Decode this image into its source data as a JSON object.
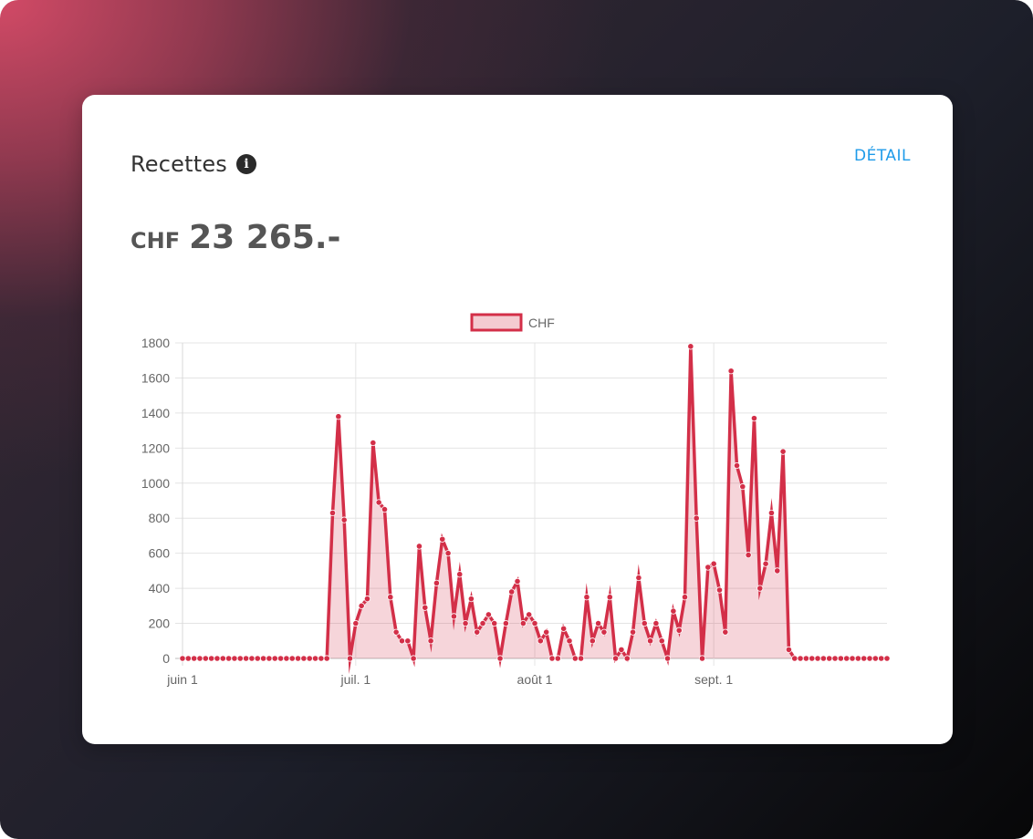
{
  "card": {
    "title": "Recettes",
    "info_icon": "info-icon",
    "detail_label": "DÉTAIL",
    "total_currency": "CHF",
    "total_amount": "23 265.-"
  },
  "colors": {
    "line": "#d32f48",
    "fill": "rgba(211,47,72,0.2)",
    "link": "#1e9be9"
  },
  "chart_data": {
    "type": "line",
    "legend": "CHF",
    "legend_position": "top",
    "grid": true,
    "x_tick_labels": [
      "juin 1",
      "juil. 1",
      "août 1",
      "sept. 1"
    ],
    "x_tick_days": [
      0,
      30,
      61,
      92
    ],
    "ylim": [
      0,
      1800
    ],
    "y_ticks": [
      0,
      200,
      400,
      600,
      800,
      1000,
      1200,
      1400,
      1600,
      1800
    ],
    "series": [
      {
        "name": "CHF",
        "values": [
          0,
          0,
          0,
          0,
          0,
          0,
          0,
          0,
          0,
          0,
          0,
          0,
          0,
          0,
          0,
          0,
          0,
          0,
          0,
          0,
          0,
          0,
          0,
          0,
          0,
          0,
          830,
          1380,
          790,
          0,
          200,
          300,
          340,
          1230,
          890,
          850,
          350,
          150,
          100,
          100,
          0,
          640,
          290,
          100,
          430,
          680,
          600,
          240,
          480,
          200,
          340,
          150,
          200,
          250,
          200,
          0,
          200,
          380,
          440,
          200,
          250,
          200,
          100,
          150,
          0,
          0,
          170,
          100,
          0,
          0,
          350,
          100,
          200,
          150,
          350,
          0,
          50,
          0,
          150,
          460,
          200,
          100,
          200,
          100,
          0,
          270,
          160,
          350,
          1780,
          800,
          0,
          520,
          540,
          390,
          150,
          1640,
          1100,
          980,
          590,
          1370,
          400,
          540,
          830,
          500,
          1180,
          50,
          0,
          0,
          0,
          0,
          0,
          0,
          0,
          0,
          0,
          0,
          0,
          0,
          0,
          0,
          0,
          0,
          0
        ]
      }
    ]
  }
}
